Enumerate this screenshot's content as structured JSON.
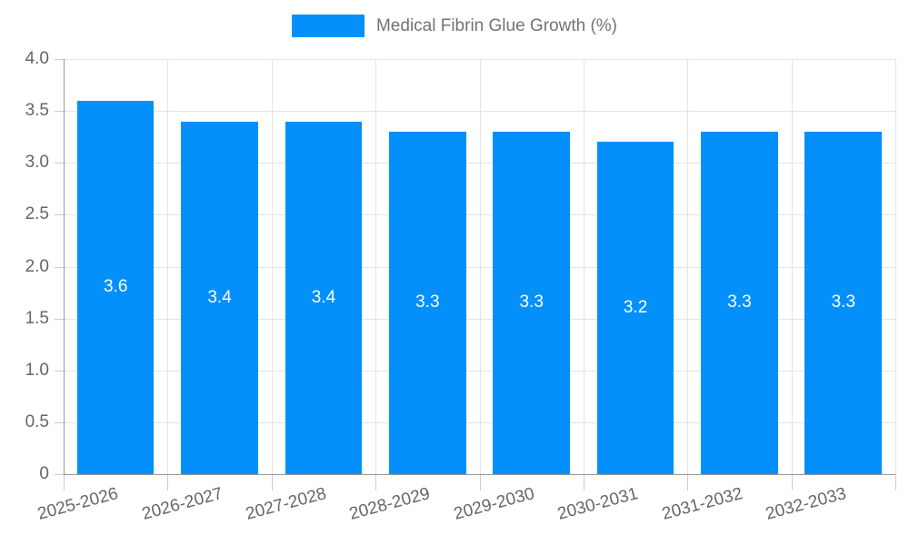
{
  "chart_data": {
    "type": "bar",
    "title": "",
    "series": [
      {
        "name": "Medical Fibrin Glue Growth (%)",
        "values": [
          3.6,
          3.4,
          3.4,
          3.3,
          3.3,
          3.2,
          3.3,
          3.3
        ],
        "value_labels": [
          "3.6",
          "3.4",
          "3.4",
          "3.3",
          "3.3",
          "3.2",
          "3.3",
          "3.3"
        ]
      }
    ],
    "categories": [
      "2025-2026",
      "2026-2027",
      "2027-2028",
      "2028-2029",
      "2029-2030",
      "2030-2031",
      "2031-2032",
      "2032-2033"
    ],
    "xlabel": "",
    "ylabel": "",
    "ylim": [
      0,
      4
    ],
    "ytick_values": [
      0,
      0.5,
      1,
      1.5,
      2,
      2.5,
      3,
      3.5,
      4
    ],
    "ytick_labels": [
      "0",
      "0.5",
      "1.0",
      "1.5",
      "2.0",
      "2.5",
      "3.0",
      "3.5",
      "4.0"
    ],
    "grid": "horizontal and vertical gridlines on",
    "legend_position": "top-center",
    "bar_color": "#0490fa",
    "bar_label_color": "#ffffff",
    "axis_line_color": "#999999",
    "grid_line_color": "#e3e3e3",
    "axis_text_color": "#666666",
    "legend_text_color": "#737373",
    "xlabel_rotation_deg": -15
  },
  "legend": {
    "label": "Medical Fibrin Glue Growth (%)"
  }
}
